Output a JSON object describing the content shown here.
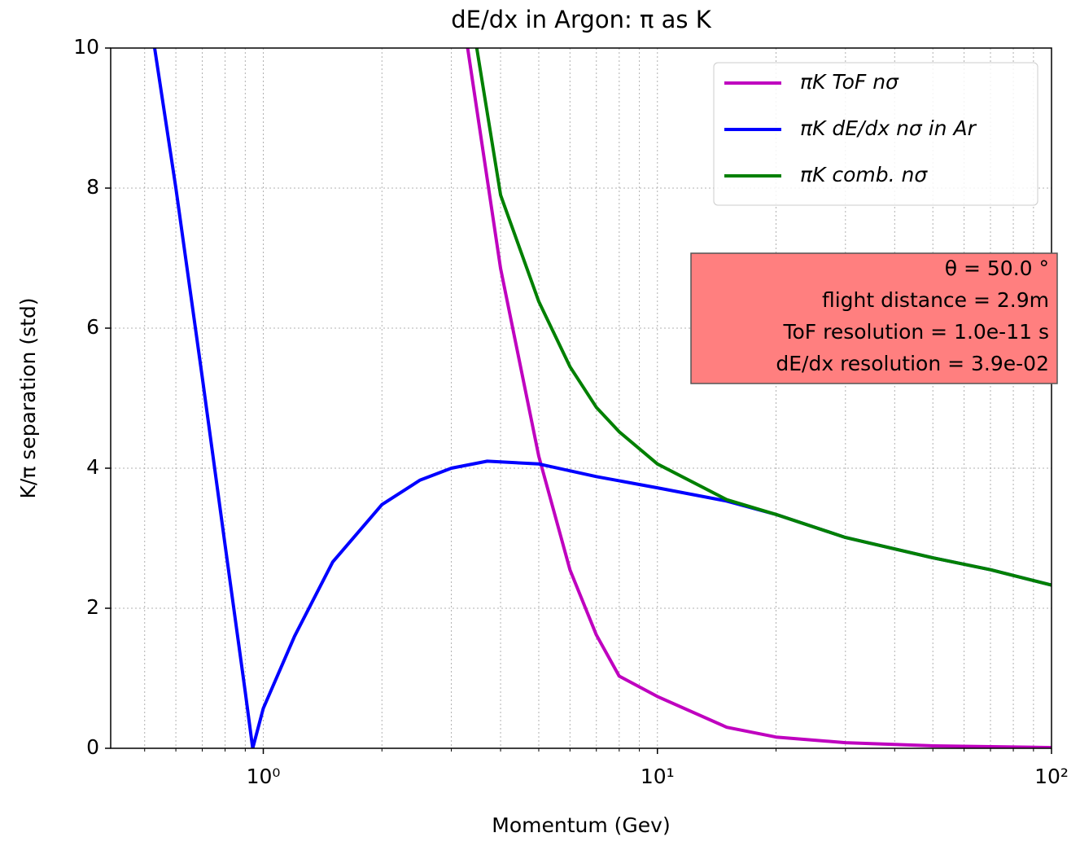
{
  "chart_data": {
    "type": "line",
    "title": "dE/dx in Argon: π as K",
    "xlabel": "Momentum (Gev)",
    "ylabel": "K/π separation (std)",
    "xscale": "log",
    "xlim": [
      0.41,
      100
    ],
    "ylim": [
      0,
      10
    ],
    "xticks": [
      {
        "value": 1,
        "label": "10⁰"
      },
      {
        "value": 10,
        "label": "10¹"
      },
      {
        "value": 100,
        "label": "10²"
      }
    ],
    "xminorticks": [
      0.5,
      0.6,
      0.7,
      0.8,
      0.9,
      2,
      3,
      4,
      5,
      6,
      7,
      8,
      9,
      20,
      30,
      40,
      50,
      60,
      70,
      80,
      90
    ],
    "yticks": [
      0,
      2,
      4,
      6,
      8,
      10
    ],
    "grid": true,
    "legend": "upper right",
    "series": [
      {
        "name": "πK ToF nσ",
        "color": "#bf00bf",
        "x": [
          3.3,
          4,
          5,
          6,
          7,
          8,
          10,
          15,
          20,
          30,
          50,
          100
        ],
        "values": [
          10,
          6.85,
          4.17,
          2.55,
          1.62,
          1.03,
          0.74,
          0.3,
          0.16,
          0.08,
          0.035,
          0.01
        ]
      },
      {
        "name": "πK dE/dx nσ in Ar",
        "color": "#0000ff",
        "x": [
          0.53,
          0.6,
          0.7,
          0.8,
          0.9,
          0.94,
          1.0,
          1.2,
          1.5,
          2,
          2.5,
          3,
          3.7,
          5,
          7,
          10,
          15,
          20,
          30,
          50,
          70,
          100
        ],
        "values": [
          10,
          8.0,
          5.3,
          2.9,
          0.8,
          0,
          0.57,
          1.6,
          2.66,
          3.48,
          3.83,
          4.0,
          4.1,
          4.06,
          3.88,
          3.72,
          3.53,
          3.34,
          3.01,
          2.72,
          2.55,
          2.33
        ]
      },
      {
        "name": "πK comb.  nσ",
        "color": "#008000",
        "x": [
          3.48,
          4,
          5,
          6,
          7,
          8,
          10,
          15,
          20,
          30,
          50,
          70,
          100
        ],
        "values": [
          10,
          7.9,
          6.38,
          5.45,
          4.87,
          4.52,
          4.06,
          3.55,
          3.34,
          3.01,
          2.72,
          2.55,
          2.33
        ]
      }
    ],
    "annotation_color": "#ff7f7f",
    "annotations": [
      "θ = 50.0 °",
      "flight distance = 2.9m",
      "ToF resolution = 1.0e-11 s",
      "dE/dx resolution = 3.9e-02"
    ]
  }
}
